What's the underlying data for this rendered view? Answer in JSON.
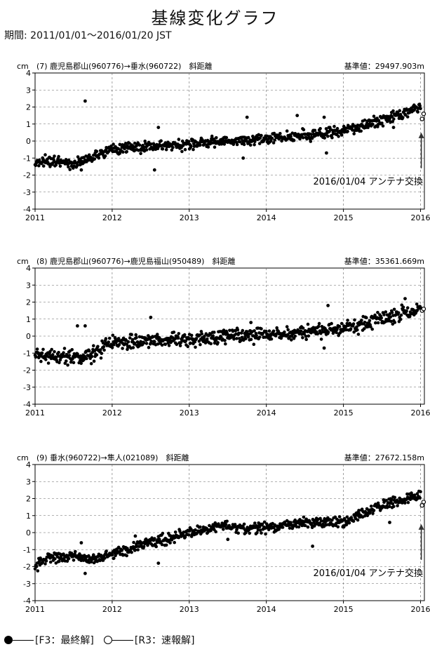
{
  "page": {
    "title": "基線変化グラフ",
    "period": "期間: 2011/01/01〜2016/01/20 JST"
  },
  "legend": {
    "final_label": "[F3：最終解]",
    "rapid_label": "[R3：速報解]"
  },
  "chart_data": [
    {
      "type": "scatter",
      "title": "(7) 鹿児島郡山(960776)→垂水(960722)　斜距離",
      "reference": "基準値：29497.903m",
      "ylabel": "cm",
      "ylim": [
        -4,
        4
      ],
      "yticks": [
        "4",
        "3",
        "2",
        "1",
        "0",
        "-1",
        "-2",
        "-3",
        "-4"
      ],
      "xlim": [
        2011.0,
        2016.05
      ],
      "xticks": [
        "2011",
        "2012",
        "2013",
        "2014",
        "2015",
        "2016"
      ],
      "annotation": "2016/01/04 アンテナ交換",
      "annotation_x": 2016.01,
      "trend": [
        [
          2011.0,
          -1.2
        ],
        [
          2011.5,
          -1.3
        ],
        [
          2011.75,
          -1.0
        ],
        [
          2012.0,
          -0.5
        ],
        [
          2012.5,
          -0.3
        ],
        [
          2013.0,
          -0.2
        ],
        [
          2013.5,
          0.0
        ],
        [
          2014.0,
          0.15
        ],
        [
          2014.5,
          0.35
        ],
        [
          2015.0,
          0.6
        ],
        [
          2015.5,
          1.2
        ],
        [
          2016.0,
          2.0
        ]
      ],
      "spread": 0.25,
      "outliers": [
        [
          2011.65,
          2.35
        ],
        [
          2012.1,
          -0.2
        ],
        [
          2012.6,
          0.8
        ],
        [
          2012.55,
          -1.7
        ],
        [
          2013.75,
          1.4
        ],
        [
          2013.7,
          -1.0
        ],
        [
          2014.4,
          1.5
        ],
        [
          2014.75,
          1.4
        ],
        [
          2014.78,
          -0.7
        ],
        [
          2015.65,
          0.8
        ],
        [
          2011.6,
          -1.7
        ]
      ],
      "series": [
        {
          "key": "final",
          "x_start": 2011.0,
          "x_end": 2016.0
        },
        {
          "key": "rapid",
          "x_start": 2016.0,
          "x_end": 2016.05,
          "values": [
            [
              2016.02,
              1.3
            ],
            [
              2016.04,
              1.6
            ]
          ]
        }
      ]
    },
    {
      "type": "scatter",
      "title": "(8) 鹿児島郡山(960776)→鹿児島福山(950489)　斜距離",
      "reference": "基準値：35361.669m",
      "ylabel": "cm",
      "ylim": [
        -4,
        4
      ],
      "yticks": [
        "4",
        "3",
        "2",
        "1",
        "0",
        "-1",
        "-2",
        "-3",
        "-4"
      ],
      "xlim": [
        2011.0,
        2016.05
      ],
      "xticks": [
        "2011",
        "2012",
        "2013",
        "2014",
        "2015",
        "2016"
      ],
      "annotation": "",
      "trend": [
        [
          2011.0,
          -1.1
        ],
        [
          2011.5,
          -1.2
        ],
        [
          2011.75,
          -1.1
        ],
        [
          2012.0,
          -0.4
        ],
        [
          2012.5,
          -0.2
        ],
        [
          2013.0,
          -0.2
        ],
        [
          2013.5,
          0.0
        ],
        [
          2014.0,
          0.1
        ],
        [
          2014.5,
          0.2
        ],
        [
          2015.0,
          0.4
        ],
        [
          2015.5,
          1.0
        ],
        [
          2016.0,
          1.6
        ]
      ],
      "spread": 0.35,
      "outliers": [
        [
          2011.55,
          0.6
        ],
        [
          2011.65,
          0.6
        ],
        [
          2012.5,
          1.1
        ],
        [
          2014.8,
          1.8
        ],
        [
          2014.75,
          -0.7
        ],
        [
          2013.8,
          0.8
        ],
        [
          2015.8,
          2.2
        ]
      ],
      "series": [
        {
          "key": "final",
          "x_start": 2011.0,
          "x_end": 2016.0
        },
        {
          "key": "rapid",
          "x_start": 2016.0,
          "x_end": 2016.05,
          "values": [
            [
              2016.02,
              1.5
            ],
            [
              2016.04,
              1.6
            ]
          ]
        }
      ]
    },
    {
      "type": "scatter",
      "title": "(9) 垂水(960722)→隼人(021089)　斜距離",
      "reference": "基準値：27672.158m",
      "ylabel": "cm",
      "ylim": [
        -4,
        4
      ],
      "yticks": [
        "4",
        "3",
        "2",
        "1",
        "0",
        "-1",
        "-2",
        "-3",
        "-4"
      ],
      "xlim": [
        2011.0,
        2016.05
      ],
      "xticks": [
        "2011",
        "2012",
        "2013",
        "2014",
        "2015",
        "2016"
      ],
      "annotation": "2016/01/04 アンテナ交換",
      "annotation_x": 2016.01,
      "trend": [
        [
          2011.0,
          -2.0
        ],
        [
          2011.15,
          -1.5
        ],
        [
          2011.5,
          -1.4
        ],
        [
          2011.75,
          -1.6
        ],
        [
          2012.0,
          -1.3
        ],
        [
          2012.5,
          -0.6
        ],
        [
          2013.0,
          0.0
        ],
        [
          2013.4,
          0.4
        ],
        [
          2013.75,
          0.2
        ],
        [
          2014.0,
          0.3
        ],
        [
          2014.5,
          0.6
        ],
        [
          2015.0,
          0.6
        ],
        [
          2015.5,
          1.6
        ],
        [
          2016.0,
          2.2
        ]
      ],
      "spread": 0.25,
      "outliers": [
        [
          2011.6,
          -0.6
        ],
        [
          2011.65,
          -2.4
        ],
        [
          2012.6,
          -1.8
        ],
        [
          2013.5,
          -0.4
        ],
        [
          2014.6,
          -0.8
        ],
        [
          2015.2,
          1.3
        ],
        [
          2015.6,
          0.6
        ],
        [
          2012.3,
          -0.2
        ]
      ],
      "series": [
        {
          "key": "final",
          "x_start": 2011.0,
          "x_end": 2016.0
        },
        {
          "key": "rapid",
          "x_start": 2016.0,
          "x_end": 2016.05,
          "values": [
            [
              2016.02,
              1.6
            ],
            [
              2016.04,
              1.8
            ]
          ]
        }
      ]
    }
  ]
}
